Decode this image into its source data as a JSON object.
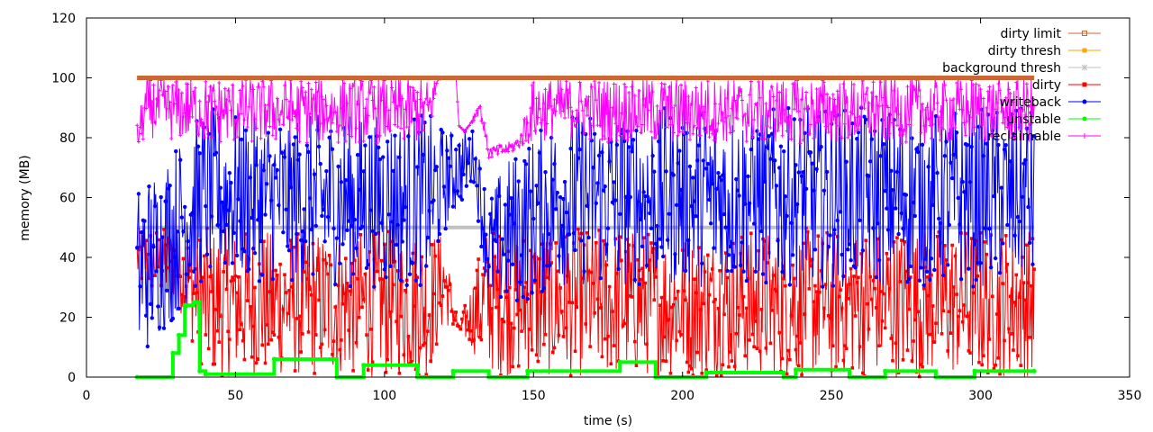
{
  "chart_data": {
    "type": "line",
    "title": "",
    "xlabel": "time (s)",
    "ylabel": "memory (MB)",
    "xlim": [
      0,
      350
    ],
    "ylim": [
      0,
      120
    ],
    "xticks": [
      "0",
      "50",
      "100",
      "150",
      "200",
      "250",
      "300",
      "350"
    ],
    "yticks": [
      "0",
      "20",
      "40",
      "60",
      "80",
      "100",
      "120"
    ],
    "grid": false,
    "legend_position": "top-right",
    "series": [
      {
        "name": "dirty limit",
        "color": "#cc6633",
        "marker": "open-square",
        "style": "constant",
        "x": [
          17,
          318
        ],
        "y": [
          100,
          100
        ]
      },
      {
        "name": "dirty thresh",
        "color": "#ffa500",
        "marker": "square",
        "style": "constant",
        "x": [
          17,
          318
        ],
        "y": [
          100,
          100
        ]
      },
      {
        "name": "background thresh",
        "color": "#c0c0c0",
        "marker": "star",
        "style": "line",
        "x": [
          17,
          120,
          121,
          136,
          137,
          318
        ],
        "y": [
          50,
          50,
          50,
          50,
          50,
          50
        ]
      },
      {
        "name": "dirty",
        "color": "#ff0000",
        "marker": "square",
        "style": "noisy",
        "x": [
          17,
          30,
          40,
          60,
          80,
          100,
          115,
          120,
          125,
          134,
          140,
          160,
          180,
          200,
          220,
          240,
          260,
          280,
          300,
          318
        ],
        "y_min": [
          30,
          25,
          0,
          0,
          0,
          0,
          0,
          17,
          15,
          2,
          0,
          0,
          0,
          0,
          0,
          0,
          0,
          0,
          0,
          0
        ],
        "y_max": [
          50,
          50,
          50,
          49,
          49,
          49,
          49,
          48,
          17,
          50,
          50,
          50,
          50,
          48,
          49,
          50,
          50,
          50,
          50,
          50
        ]
      },
      {
        "name": "writeback",
        "color": "#0000ff",
        "marker": "circle",
        "style": "noisy",
        "x": [
          17,
          40,
          60,
          80,
          100,
          115,
          120,
          130,
          135,
          140,
          160,
          180,
          200,
          220,
          240,
          260,
          280,
          300,
          318
        ],
        "y_min": [
          4,
          32,
          32,
          30,
          30,
          30,
          48,
          65,
          22,
          22,
          30,
          30,
          30,
          30,
          30,
          30,
          30,
          30,
          30
        ],
        "y_max": [
          64,
          90,
          88,
          88,
          88,
          88,
          83,
          83,
          60,
          72,
          90,
          90,
          90,
          90,
          90,
          90,
          90,
          90,
          90
        ]
      },
      {
        "name": "unstable",
        "color": "#00ff00",
        "marker": "circle",
        "style": "step",
        "x": [
          17,
          29,
          31,
          33,
          36,
          38,
          40,
          63,
          84,
          93,
          111,
          123,
          135,
          148,
          179,
          191,
          208,
          234,
          238,
          256,
          268,
          285,
          298,
          318
        ],
        "y": [
          0,
          8,
          14,
          24,
          25,
          2,
          1,
          6,
          0,
          4,
          0,
          2,
          0,
          2,
          5,
          0,
          1.5,
          0,
          2.5,
          0,
          2,
          0,
          2,
          2
        ]
      },
      {
        "name": "reclaimable",
        "color": "#ff00ff",
        "marker": "plus",
        "style": "noisy",
        "x": [
          17,
          20,
          40,
          60,
          80,
          100,
          115,
          118,
          119,
          124,
          125,
          127,
          132,
          135,
          140,
          145,
          150,
          160,
          180,
          200,
          220,
          240,
          260,
          280,
          300,
          318
        ],
        "y_min": [
          75,
          80,
          78,
          78,
          78,
          78,
          78,
          99,
          100,
          100,
          84,
          82,
          88,
          73,
          74,
          76,
          78,
          80,
          78,
          78,
          78,
          78,
          78,
          78,
          78,
          78
        ],
        "y_max": [
          85,
          100,
          100,
          100,
          100,
          100,
          100,
          100,
          100,
          100,
          84,
          82,
          93,
          77,
          78,
          80,
          100,
          100,
          100,
          100,
          100,
          100,
          100,
          100,
          100,
          100
        ]
      }
    ]
  }
}
